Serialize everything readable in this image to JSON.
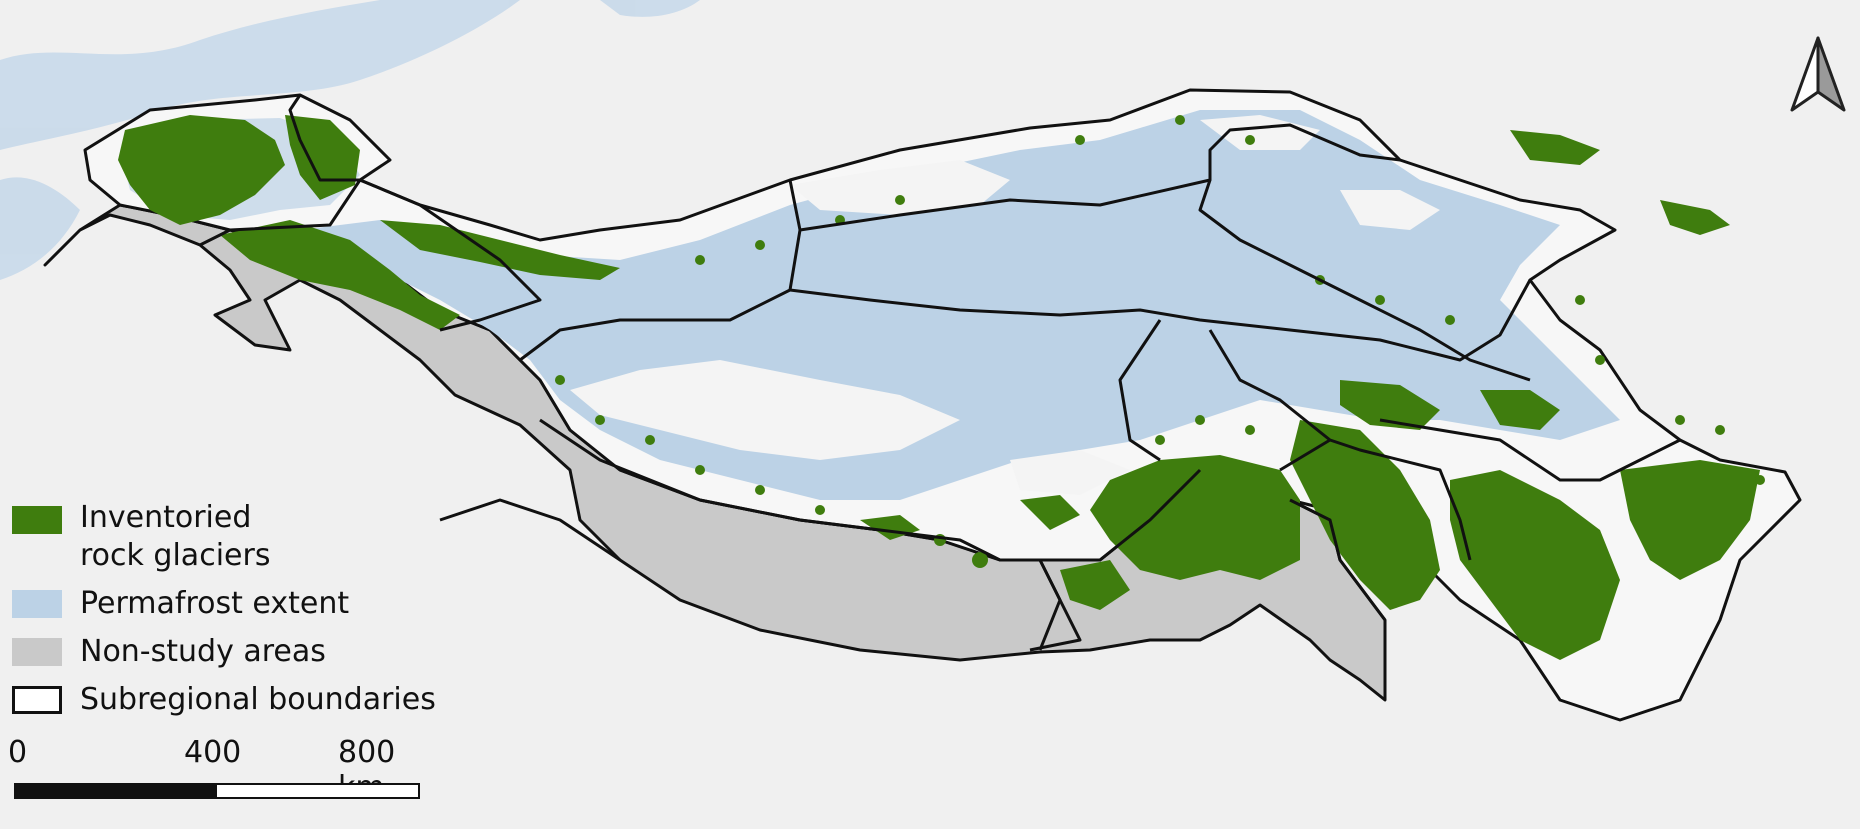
{
  "legend": {
    "rock_glaciers_line1": "Inventoried",
    "rock_glaciers_line2": "rock glaciers",
    "permafrost": "Permafrost extent",
    "non_study": "Non-study areas",
    "boundaries": "Subregional boundaries"
  },
  "scale": {
    "tick0": "0",
    "tick1": "400",
    "tick2": "800 km"
  },
  "colors": {
    "rock_glacier": "#3f7d0e",
    "permafrost": "#bcd2e6",
    "non_study": "#c9c9c9",
    "boundary": "#111111",
    "background": "#f2f2f2"
  },
  "icons": {
    "north_arrow": "north-arrow-icon"
  }
}
